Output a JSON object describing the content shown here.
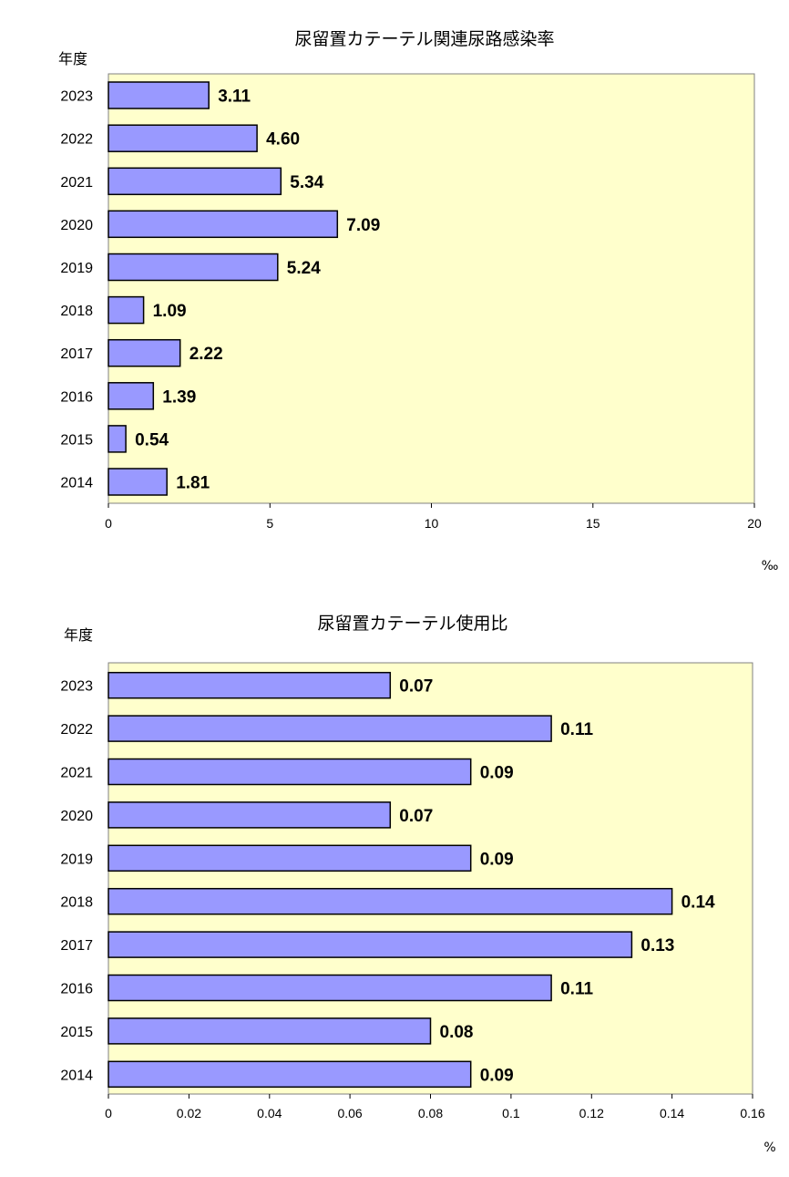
{
  "colors": {
    "plot_bg": "#ffffcc",
    "bar_fill": "#9999ff",
    "bar_stroke": "#000000"
  },
  "chart_data": [
    {
      "type": "bar",
      "orientation": "horizontal",
      "title": "尿留置カテーテル関連尿路感染率",
      "ylabel": "年度",
      "unit": "‰",
      "categories": [
        "2023",
        "2022",
        "2021",
        "2020",
        "2019",
        "2018",
        "2017",
        "2016",
        "2015",
        "2014"
      ],
      "values": [
        3.11,
        4.6,
        5.34,
        7.09,
        5.24,
        1.09,
        2.22,
        1.39,
        0.54,
        1.81
      ],
      "value_labels": [
        "3.11",
        "4.60",
        "5.34",
        "7.09",
        "5.24",
        "1.09",
        "2.22",
        "1.39",
        "0.54",
        "1.81"
      ],
      "xlim": [
        0,
        20
      ],
      "xticks": [
        0,
        5,
        10,
        15,
        20
      ],
      "xtick_labels": [
        "0",
        "5",
        "10",
        "15",
        "20"
      ],
      "grid": false,
      "legend": "none"
    },
    {
      "type": "bar",
      "orientation": "horizontal",
      "title": "尿留置カテーテル使用比",
      "ylabel": "年度",
      "unit": "%",
      "categories": [
        "2023",
        "2022",
        "2021",
        "2020",
        "2019",
        "2018",
        "2017",
        "2016",
        "2015",
        "2014"
      ],
      "values": [
        0.07,
        0.11,
        0.09,
        0.07,
        0.09,
        0.14,
        0.13,
        0.11,
        0.08,
        0.09
      ],
      "value_labels": [
        "0.07",
        "0.11",
        "0.09",
        "0.07",
        "0.09",
        "0.14",
        "0.13",
        "0.11",
        "0.08",
        "0.09"
      ],
      "xlim": [
        0,
        0.16
      ],
      "xticks": [
        0,
        0.02,
        0.04,
        0.06,
        0.08,
        0.1,
        0.12,
        0.14,
        0.16
      ],
      "xtick_labels": [
        "0",
        "0.02",
        "0.04",
        "0.06",
        "0.08",
        "0.1",
        "0.12",
        "0.14",
        "0.16"
      ],
      "grid": false,
      "legend": "none"
    }
  ]
}
